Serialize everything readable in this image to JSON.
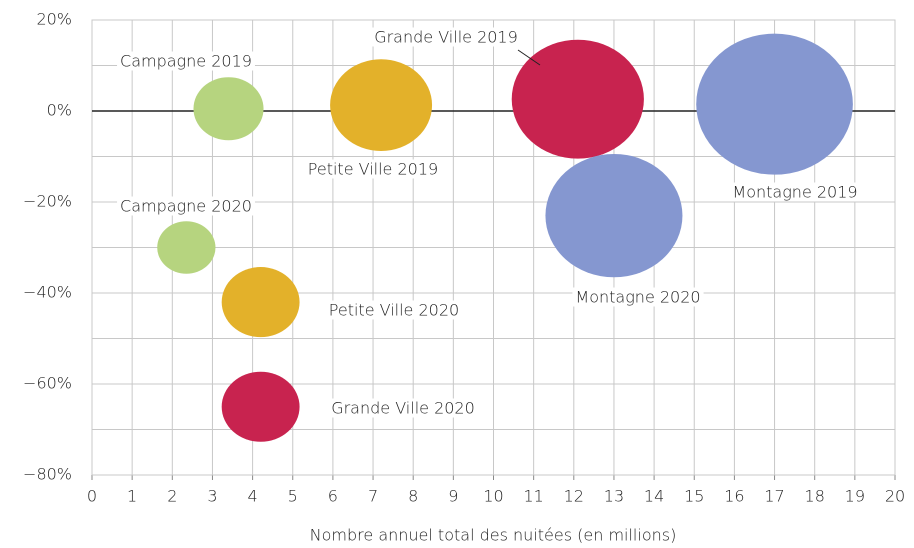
{
  "chart_data": {
    "type": "scatter",
    "xlabel": "Nombre annuel total des nuitées (en millions)",
    "xlim": [
      0,
      20
    ],
    "xticks": [
      0,
      1,
      2,
      3,
      4,
      5,
      6,
      7,
      8,
      9,
      10,
      11,
      12,
      13,
      14,
      15,
      16,
      17,
      18,
      19,
      20
    ],
    "ylim": [
      -80,
      20
    ],
    "yticks": [
      {
        "value": -80,
        "label": "−80%"
      },
      {
        "value": -60,
        "label": "−60%"
      },
      {
        "value": -40,
        "label": "−40%"
      },
      {
        "value": -20,
        "label": "−20%"
      },
      {
        "value": 0,
        "label": "0%"
      },
      {
        "value": 20,
        "label": "20%"
      }
    ],
    "yminor": [
      -70,
      -50,
      -30,
      -10,
      10
    ],
    "grid": true,
    "series": [
      {
        "name": "Campagne 2019",
        "color": "#b6d47f",
        "x": [
          3.4
        ],
        "values": [
          0.5
        ],
        "sizes": [
          3.4
        ]
      },
      {
        "name": "Petite Ville 2019",
        "color": "#e3b12a",
        "x": [
          7.2
        ],
        "values": [
          1.3
        ],
        "sizes": [
          7.2
        ]
      },
      {
        "name": "Grande Ville 2019",
        "color": "#c8234f",
        "x": [
          12.1
        ],
        "values": [
          2.6
        ],
        "sizes": [
          12.1
        ]
      },
      {
        "name": "Montagne 2019",
        "color": "#8597d0",
        "x": [
          17
        ],
        "values": [
          1.5
        ],
        "sizes": [
          17
        ]
      },
      {
        "name": "Campagne 2020",
        "color": "#b6d47f",
        "x": [
          2.35
        ],
        "values": [
          -30
        ],
        "sizes": [
          2.35
        ]
      },
      {
        "name": "Petite Ville 2020",
        "color": "#e3b12a",
        "x": [
          4.2
        ],
        "values": [
          -42
        ],
        "sizes": [
          4.2
        ]
      },
      {
        "name": "Grande Ville 2020",
        "color": "#c8234f",
        "x": [
          4.2
        ],
        "values": [
          -65
        ],
        "sizes": [
          4.2
        ]
      },
      {
        "name": "Montagne 2020",
        "color": "#8597d0",
        "x": [
          13
        ],
        "values": [
          -23
        ],
        "sizes": [
          13
        ]
      }
    ]
  }
}
